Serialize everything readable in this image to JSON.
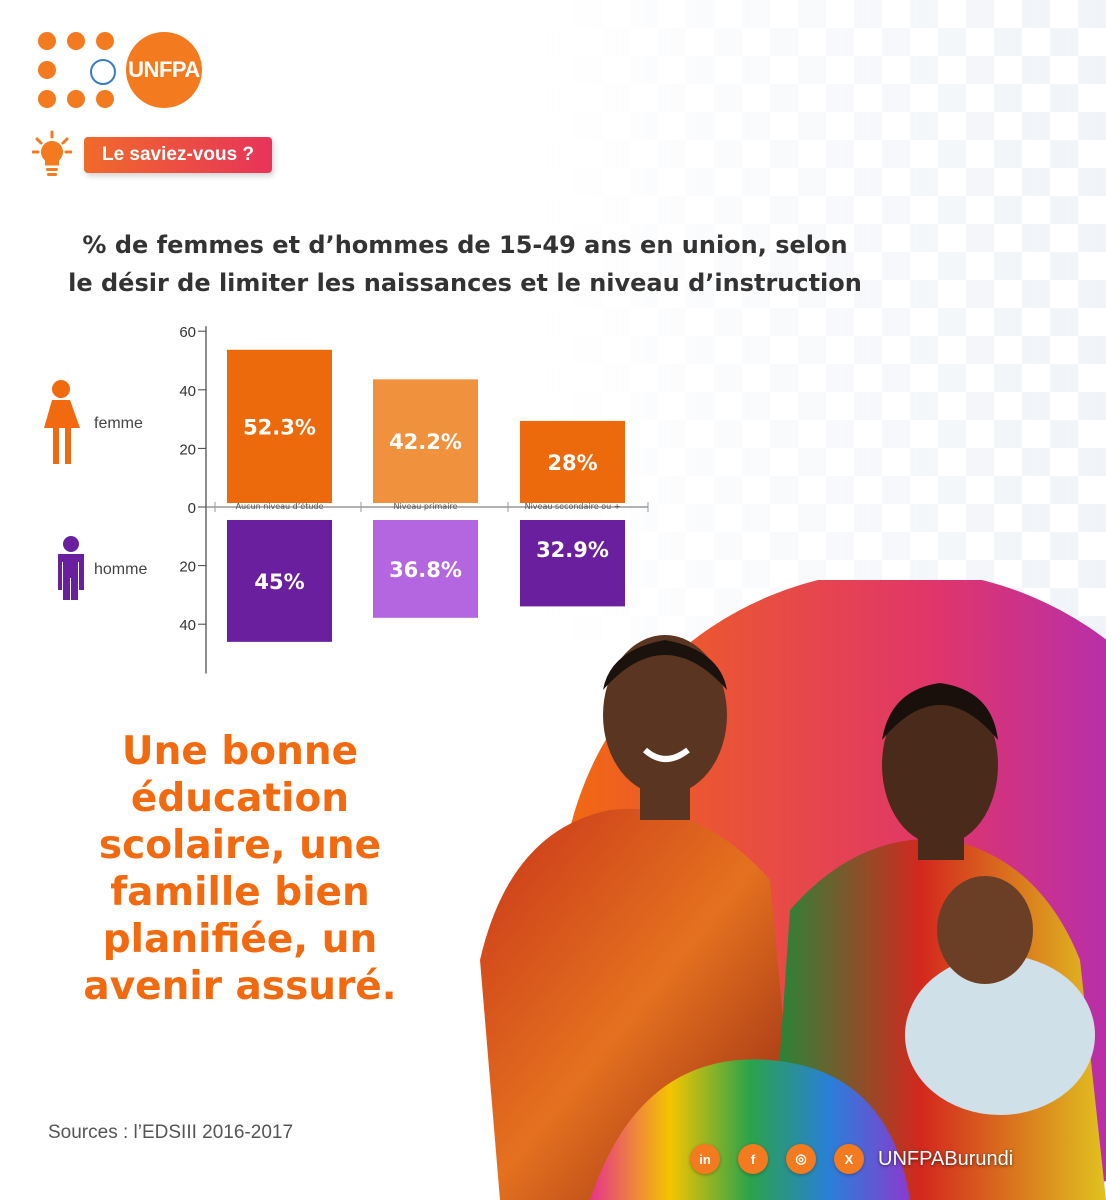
{
  "brand": {
    "logo_text": "UNFPA"
  },
  "tag": {
    "label": "Le saviez-vous ?",
    "icon": "lightbulb-icon"
  },
  "title": {
    "line1": "% de femmes et d’hommes de 15-49 ans en union, selon",
    "line2": "le désir de limiter les naissances et le niveau d’instruction"
  },
  "legend": {
    "female": "femme",
    "male": "homme"
  },
  "colors": {
    "accent": "#f47a20",
    "female": [
      "#ec6a0c",
      "#f0913e",
      "#ec6a0c"
    ],
    "male": [
      "#6a1f9e",
      "#b466e0",
      "#6a1f9e"
    ]
  },
  "chart_data": {
    "type": "bar",
    "categories": [
      "Aucun niveau d’étude",
      "Niveau primaire",
      "Niveau secondaire ou +"
    ],
    "series": [
      {
        "name": "femme",
        "values": [
          52.3,
          42.2,
          28
        ],
        "labels": [
          "52.3%",
          "42.2%",
          "28%"
        ]
      },
      {
        "name": "homme",
        "values": [
          45,
          36.8,
          32.9
        ],
        "labels": [
          "45%",
          "36.8%",
          "32.9%"
        ]
      }
    ],
    "y_ticks_up": [
      "60",
      "40",
      "20",
      "0"
    ],
    "y_ticks_down": [
      "20",
      "40"
    ],
    "ylim": [
      -50,
      60
    ]
  },
  "headline": {
    "lines": [
      "Une bonne",
      "éducation",
      "scolaire, une",
      "famille bien",
      "planifiée, un",
      "avenir assuré."
    ]
  },
  "sources": "Sources : l’EDSIII 2016-2017",
  "social": {
    "linkedin": "in",
    "facebook": "f",
    "instagram": "◎",
    "x": "X",
    "handle": "UNFPABurundi"
  }
}
